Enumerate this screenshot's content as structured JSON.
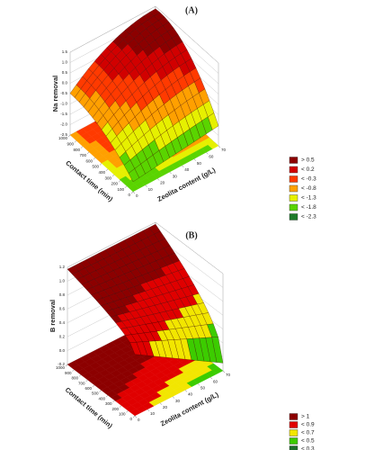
{
  "chart_data": [
    {
      "type": "surface",
      "title": "(A)",
      "z_label": "Na removal",
      "x_label": "Contact time (min)",
      "y_label": "Zeolita content (g/L)",
      "zlim": [
        -2.5,
        1.5
      ],
      "zticks": [
        1.5,
        {
          "value": 1,
          "label": "1.0"
        },
        0.5,
        {
          "value": 0,
          "label": "0.0"
        },
        -0.5,
        {
          "value": -1,
          "label": "-1.0"
        },
        -1.5,
        {
          "value": -2,
          "label": "-2.0"
        },
        -2.5
      ],
      "xlim": [
        0,
        1000
      ],
      "xticks": [
        0,
        100,
        200,
        300,
        400,
        500,
        600,
        700,
        800,
        900,
        1000
      ],
      "ylim": [
        0,
        70
      ],
      "yticks": [
        0,
        10,
        20,
        30,
        40,
        50,
        60,
        70
      ],
      "legend": [
        {
          "label": "> 0.5",
          "color": "#8c0000"
        },
        {
          "label": "< 0.2",
          "color": "#d10000"
        },
        {
          "label": "< -0.3",
          "color": "#ff3a00"
        },
        {
          "label": "< -0.8",
          "color": "#ffa000"
        },
        {
          "label": "< -1.3",
          "color": "#e6f000"
        },
        {
          "label": "< -1.8",
          "color": "#5ad400"
        },
        {
          "label": "< -2.3",
          "color": "#1e7a2a"
        }
      ]
    },
    {
      "type": "surface",
      "title": "(B)",
      "z_label": "B removal",
      "x_label": "Contact time (min)",
      "y_label": "Zeolita content (g/L)",
      "zlim": [
        -0.2,
        1.2
      ],
      "zticks": [
        1.2,
        {
          "value": 1,
          "label": "1.0"
        },
        0.8,
        0.6,
        0.4,
        0.2,
        {
          "value": 0,
          "label": "0.0"
        },
        -0.2
      ],
      "xlim": [
        0,
        1000
      ],
      "xticks": [
        0,
        100,
        200,
        300,
        400,
        500,
        600,
        700,
        800,
        900,
        1000
      ],
      "ylim": [
        0,
        70
      ],
      "yticks": [
        0,
        10,
        20,
        30,
        40,
        50,
        60,
        70
      ],
      "legend": [
        {
          "label": "> 1",
          "color": "#8c0000"
        },
        {
          "label": "< 0.9",
          "color": "#e00000"
        },
        {
          "label": "< 0.7",
          "color": "#f2e600"
        },
        {
          "label": "< 0.5",
          "color": "#3ccc00"
        },
        {
          "label": "< 0.3",
          "color": "#1e6e2a"
        }
      ]
    }
  ]
}
